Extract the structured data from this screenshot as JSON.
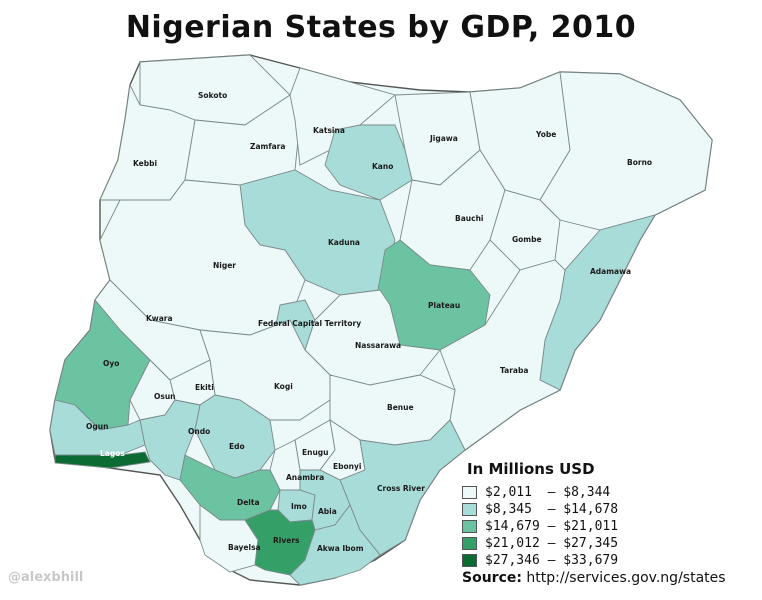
{
  "title": "Nigerian States by GDP, 2010",
  "legend": {
    "title": "In Millions USD",
    "items": [
      {
        "label": "$2,011  – $8,344",
        "color": "#edf8f8"
      },
      {
        "label": "$8,345  – $14,678",
        "color": "#a8dcd8"
      },
      {
        "label": "$14,679 – $21,011",
        "color": "#6cc3a2"
      },
      {
        "label": "$21,012 – $27,345",
        "color": "#34a067"
      },
      {
        "label": "$27,346 – $33,679",
        "color": "#0b6b33"
      }
    ]
  },
  "source": {
    "label": "Source:",
    "url": "http://services.gov.ng/states"
  },
  "watermark": "@alexbhill",
  "states": {
    "sokoto": "Sokoto",
    "kebbi": "Kebbi",
    "zamfara": "Zamfara",
    "katsina": "Katsina",
    "kano": "Kano",
    "jigawa": "Jigawa",
    "yobe": "Yobe",
    "borno": "Borno",
    "bauchi": "Bauchi",
    "gombe": "Gombe",
    "kaduna": "Kaduna",
    "niger": "Niger",
    "plateau": "Plateau",
    "adamawa": "Adamawa",
    "kwara": "Kwara",
    "fct": "Federal Capital Territory",
    "nassarawa": "Nassarawa",
    "oyo": "Oyo",
    "taraba": "Taraba",
    "ekiti": "Ekiti",
    "kogi": "Kogi",
    "osun": "Osun",
    "benue": "Benue",
    "ogun": "Ogun",
    "ondo": "Ondo",
    "edo": "Edo",
    "lagos": "Lagos",
    "enugu": "Enugu",
    "ebonyi": "Ebonyi",
    "anambra": "Anambra",
    "cross_river": "Cross River",
    "delta": "Delta",
    "imo": "Imo",
    "abia": "Abia",
    "bayelsa": "Bayelsa",
    "rivers": "Rivers",
    "akwa_ibom": "Akwa Ibom"
  }
}
